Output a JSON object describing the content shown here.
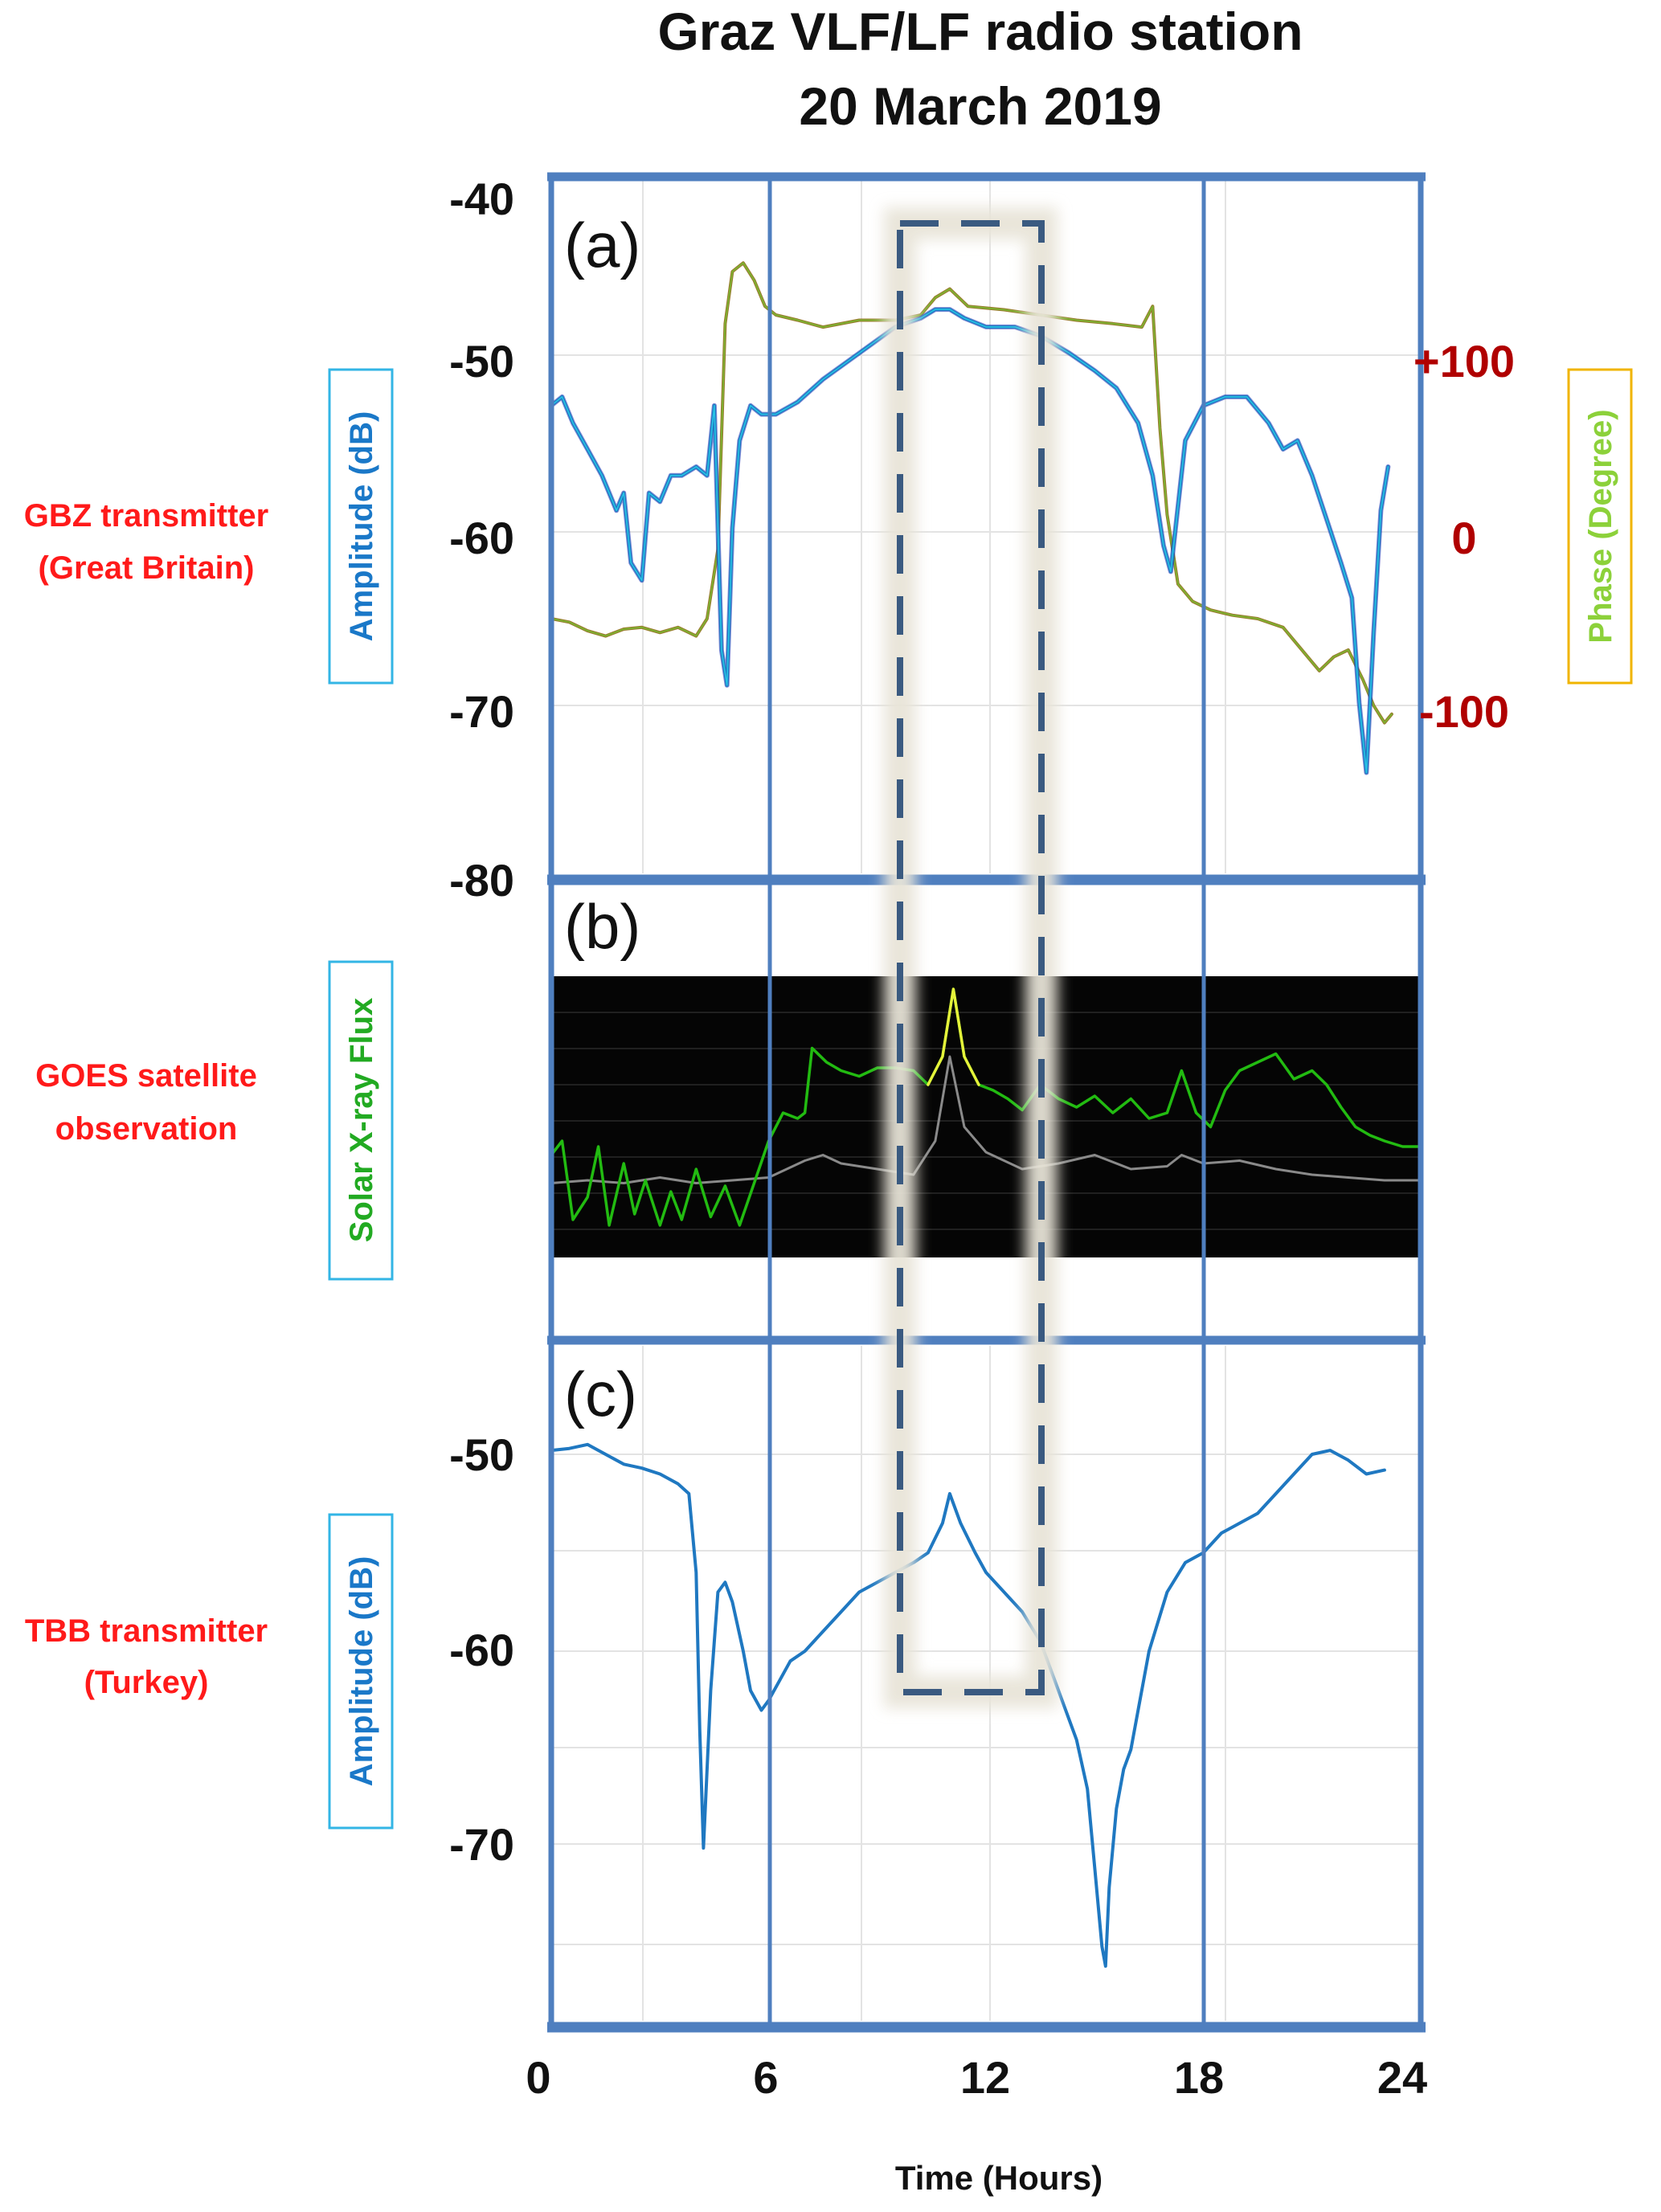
{
  "title": {
    "line1": "Graz VLF/LF radio station",
    "line2": "20 March 2019"
  },
  "x_axis": {
    "label": "Time (Hours)",
    "ticks": [
      "0",
      "6",
      "12",
      "18",
      "24"
    ],
    "range": [
      0,
      24
    ]
  },
  "colors": {
    "frame": "#4f7fbf",
    "amplitude_line": "#1f78c1",
    "amplitude_line_light": "#27c3e6",
    "amplitude_line_dark": "#1a2fb5",
    "phase_line_brown": "#9a7a2e",
    "phase_line_green": "#66dd33",
    "xray_green": "#22bb11",
    "xray_yellow": "#e5f23a",
    "xray_grey": "#8a8a8a",
    "highlight_box": "#3a5a80",
    "side_labels": "#ff1a1a",
    "right_ticks": "#b00000",
    "amp_label": "#1a78c8",
    "phase_label": "#8cd13a",
    "xray_label": "#22aa22"
  },
  "panels": {
    "a": {
      "tag": "(a)",
      "side_label": [
        "GBZ transmitter",
        "(Great Britain)"
      ],
      "y_left_label": "Amplitude (dB)",
      "y_right_label": "Phase (Degree)",
      "y_left_ticks": [
        "-40",
        "-50",
        "-60",
        "-70",
        "-80"
      ],
      "y_right_ticks": [
        "+100",
        "0",
        "-100"
      ]
    },
    "b": {
      "tag": "(b)",
      "side_label": [
        "GOES satellite",
        "observation"
      ],
      "y_label": "Solar X-ray Flux"
    },
    "c": {
      "tag": "(c)",
      "side_label": [
        "TBB transmitter",
        "(Turkey)"
      ],
      "y_label": "Amplitude (dB)",
      "y_ticks": [
        "-50",
        "-60",
        "-70"
      ]
    }
  },
  "chart_data": [
    {
      "panel": "a",
      "type": "line",
      "xlabel": "Time (Hours)",
      "ylabel": "Amplitude (dB)",
      "ylim": [
        -80,
        -40
      ],
      "y2label": "Phase (Degree)",
      "y2ticks": [
        100,
        0,
        -100
      ],
      "xlim": [
        0,
        24
      ],
      "series": [
        {
          "axis": "left",
          "x": [
            0,
            0.3,
            0.6,
            1.0,
            1.4,
            1.8,
            2.0,
            2.2,
            2.5,
            2.7,
            3.0,
            3.3,
            3.6,
            4.0,
            4.3,
            4.5,
            4.7,
            4.85,
            5.0,
            5.2,
            5.5,
            5.8,
            6.2,
            6.8,
            7.5,
            8.5,
            9.5,
            10.2,
            10.6,
            11.0,
            11.4,
            12.0,
            12.8,
            13.5,
            14.3,
            15.0,
            15.6,
            16.2,
            16.6,
            16.9,
            17.1,
            17.5,
            18.0,
            18.6,
            19.2,
            19.8,
            20.2,
            20.6,
            21.0,
            21.4,
            21.8,
            22.1,
            22.3,
            22.5,
            22.7,
            22.9,
            23.1
          ],
          "y": [
            -53,
            -52.5,
            -54,
            -55.5,
            -57,
            -59,
            -58,
            -62,
            -63,
            -58,
            -58.5,
            -57,
            -57,
            -56.5,
            -57,
            -53,
            -67,
            -69,
            -60,
            -55,
            -53,
            -53.5,
            -53.5,
            -52.8,
            -51.5,
            -50,
            -48.5,
            -48,
            -47.5,
            -47.5,
            -48,
            -48.5,
            -48.5,
            -49,
            -50,
            -51,
            -52,
            -54,
            -57,
            -61,
            -62.5,
            -55,
            -53,
            -52.5,
            -52.5,
            -54,
            -55.5,
            -55,
            -57,
            -59.5,
            -62,
            -64,
            -70,
            -74,
            -66,
            -59,
            -56.5
          ]
        },
        {
          "axis": "right",
          "x": [
            0,
            0.5,
            1.0,
            1.5,
            2.0,
            2.5,
            3.0,
            3.5,
            4.0,
            4.3,
            4.6,
            4.8,
            5.0,
            5.3,
            5.6,
            5.9,
            6.2,
            6.8,
            7.5,
            8.5,
            9.5,
            10.2,
            10.6,
            11.0,
            11.5,
            12.5,
            13.5,
            14.5,
            15.5,
            16.3,
            16.6,
            16.8,
            17.0,
            17.3,
            17.7,
            18.2,
            18.8,
            19.5,
            20.2,
            20.8,
            21.2,
            21.6,
            22.0,
            22.4,
            22.7,
            23.0,
            23.2
          ],
          "y": [
            -50,
            -52,
            -57,
            -60,
            -56,
            -55,
            -58,
            -55,
            -60,
            -50,
            -10,
            120,
            150,
            155,
            145,
            130,
            125,
            122,
            118,
            122,
            122,
            125,
            135,
            140,
            130,
            128,
            125,
            122,
            120,
            118,
            130,
            60,
            10,
            -30,
            -40,
            -45,
            -48,
            -50,
            -55,
            -70,
            -80,
            -72,
            -68,
            -85,
            -100,
            -110,
            -105
          ]
        }
      ]
    },
    {
      "panel": "b",
      "type": "line",
      "ylabel": "Solar X-ray Flux",
      "xlim": [
        0,
        24
      ],
      "ylim": [
        0,
        10
      ],
      "series": [
        {
          "x": [
            0,
            0.3,
            0.6,
            1.0,
            1.3,
            1.6,
            2.0,
            2.3,
            2.6,
            3.0,
            3.3,
            3.6,
            4.0,
            4.4,
            4.8,
            5.2,
            5.6,
            6.0,
            6.4,
            6.8,
            7.0,
            7.2,
            7.6,
            8.0,
            8.5,
            9.0,
            9.5,
            10.0,
            10.4,
            10.8,
            11.1,
            11.4,
            11.8,
            12.2,
            12.6,
            13.0,
            13.5,
            14.0,
            14.5,
            15.0,
            15.5,
            16.0,
            16.5,
            17.0,
            17.4,
            17.8,
            18.2,
            18.6,
            19.0,
            19.5,
            20.0,
            20.5,
            21.0,
            21.4,
            21.8,
            22.2,
            22.6,
            23.0,
            23.5,
            24.0
          ],
          "y": [
            3.5,
            4.0,
            1.2,
            2.0,
            3.8,
            1.0,
            3.2,
            1.4,
            2.6,
            1.0,
            2.2,
            1.2,
            3.0,
            1.3,
            2.4,
            1.0,
            2.5,
            4.0,
            5.0,
            4.8,
            5.0,
            7.3,
            6.8,
            6.5,
            6.3,
            6.6,
            6.6,
            6.5,
            6.0,
            7.0,
            9.4,
            7.0,
            6.0,
            5.8,
            5.5,
            5.1,
            6.0,
            5.5,
            5.2,
            5.6,
            5.0,
            5.5,
            4.8,
            5.0,
            6.5,
            5.0,
            4.5,
            5.8,
            6.5,
            6.8,
            7.1,
            6.2,
            6.5,
            6.0,
            5.2,
            4.5,
            4.2,
            4.0,
            3.8,
            3.8
          ]
        },
        {
          "x": [
            0,
            1.0,
            2.0,
            3.0,
            4.0,
            5.0,
            6.0,
            7.0,
            7.5,
            8.0,
            9.0,
            10.0,
            10.6,
            11.0,
            11.4,
            12.0,
            12.5,
            13.0,
            14.0,
            15.0,
            16.0,
            17.0,
            17.4,
            18.0,
            19.0,
            20.0,
            21.0,
            22.0,
            23.0,
            24.0
          ],
          "y": [
            2.5,
            2.6,
            2.5,
            2.7,
            2.5,
            2.6,
            2.7,
            3.3,
            3.5,
            3.2,
            3.0,
            2.8,
            4.0,
            7.0,
            4.5,
            3.6,
            3.3,
            3.0,
            3.2,
            3.5,
            3.0,
            3.1,
            3.5,
            3.2,
            3.3,
            3.0,
            2.8,
            2.7,
            2.6,
            2.6
          ]
        }
      ]
    },
    {
      "panel": "c",
      "type": "line",
      "xlabel": "Time (Hours)",
      "ylabel": "Amplitude (dB)",
      "ylim": [
        -78,
        -47
      ],
      "xlim": [
        0,
        24
      ],
      "series": [
        {
          "x": [
            0,
            0.5,
            1.0,
            1.5,
            2.0,
            2.5,
            3.0,
            3.5,
            3.8,
            4.0,
            4.1,
            4.2,
            4.4,
            4.6,
            4.8,
            5.0,
            5.3,
            5.5,
            5.8,
            6.0,
            6.3,
            6.6,
            7.0,
            7.5,
            8.0,
            8.5,
            9.0,
            9.5,
            10.0,
            10.4,
            10.8,
            11.0,
            11.3,
            11.7,
            12.0,
            12.5,
            13.0,
            13.5,
            14.0,
            14.5,
            14.8,
            15.0,
            15.2,
            15.3,
            15.4,
            15.6,
            15.8,
            16.0,
            16.2,
            16.5,
            17.0,
            17.5,
            18.0,
            18.5,
            19.0,
            19.5,
            20.0,
            20.5,
            21.0,
            21.5,
            22.0,
            22.5,
            23.0
          ],
          "y": [
            -49.8,
            -49.7,
            -49.5,
            -50.0,
            -50.5,
            -50.7,
            -51.0,
            -51.5,
            -52.0,
            -56.0,
            -64.0,
            -70.0,
            -62.0,
            -57.0,
            -56.5,
            -57.5,
            -60.0,
            -62.0,
            -63.0,
            -62.5,
            -61.5,
            -60.5,
            -60.0,
            -59.0,
            -58.0,
            -57.0,
            -56.5,
            -56.0,
            -55.5,
            -55.0,
            -53.5,
            -52.0,
            -53.5,
            -55.0,
            -56.0,
            -57.0,
            -58.0,
            -59.5,
            -62.0,
            -64.5,
            -67.0,
            -71.0,
            -75.0,
            -76.0,
            -72.0,
            -68.0,
            -66.0,
            -65.0,
            -63.0,
            -60.0,
            -57.0,
            -55.5,
            -55.0,
            -54.0,
            -53.5,
            -53.0,
            -52.0,
            -51.0,
            -50.0,
            -49.8,
            -50.3,
            -51.0,
            -50.8
          ]
        }
      ]
    }
  ],
  "highlight_window": {
    "x_start": 9.7,
    "x_end": 13.8
  }
}
